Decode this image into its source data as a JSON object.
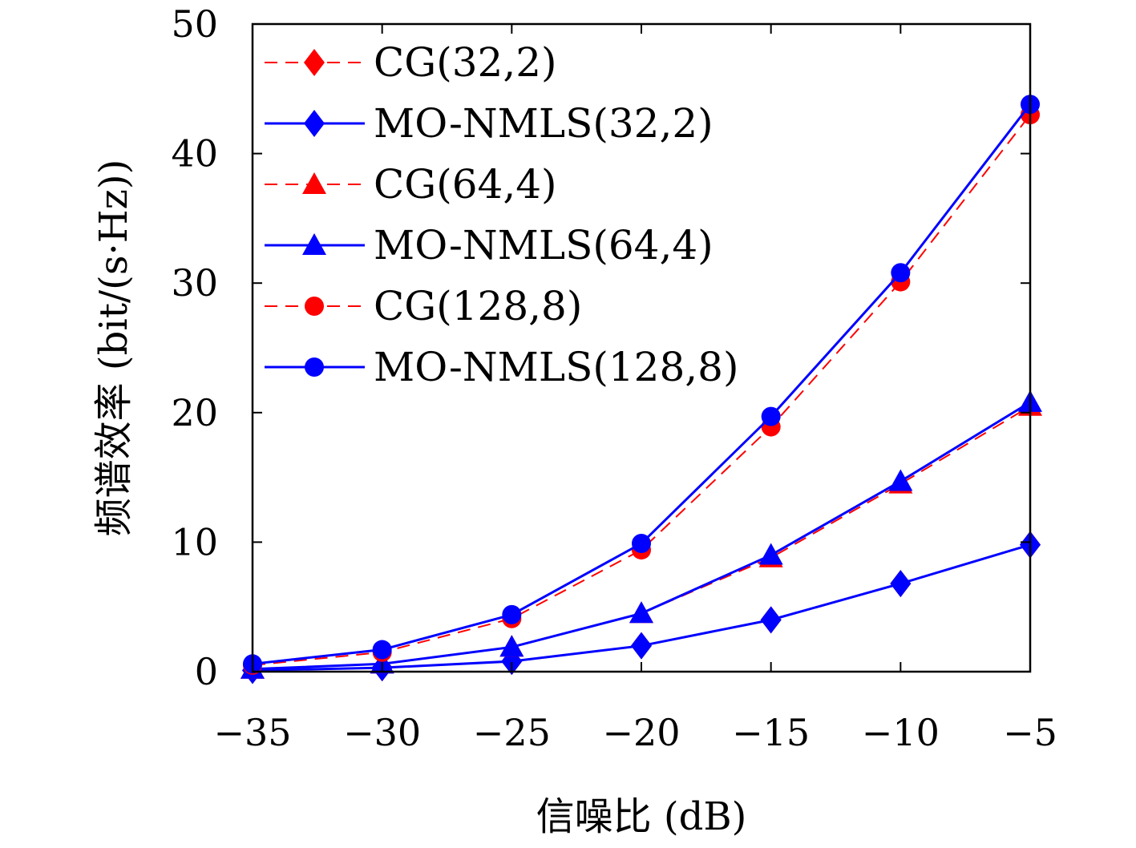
{
  "chart_data": {
    "type": "line",
    "title": "",
    "xlabel": "信噪比 (dB)",
    "ylabel": "频谱效率 (bit/(s·Hz))",
    "x": [
      -35,
      -30,
      -25,
      -20,
      -15,
      -10,
      -5
    ],
    "xlim": [
      -35,
      -5
    ],
    "ylim": [
      0,
      50
    ],
    "xticks": [
      -35,
      -30,
      -25,
      -20,
      -15,
      -10,
      -5
    ],
    "yticks": [
      0,
      10,
      20,
      30,
      40,
      50
    ],
    "xtick_labels": [
      "−35",
      "−30",
      "−25",
      "−20",
      "−15",
      "−10",
      "−5"
    ],
    "ytick_labels": [
      "0",
      "10",
      "20",
      "30",
      "40",
      "50"
    ],
    "grid": false,
    "legend_position": "top-left",
    "series": [
      {
        "name": "CG(32,2)",
        "values": [
          0.1,
          0.3,
          0.8,
          2.0,
          4.0,
          6.8,
          9.8
        ],
        "color": "#ff0000",
        "marker": "diamond",
        "dashed": true
      },
      {
        "name": "MO-NMLS(32,2)",
        "values": [
          0.1,
          0.3,
          0.8,
          2.0,
          4.0,
          6.8,
          9.8
        ],
        "color": "#0000ff",
        "marker": "diamond",
        "dashed": false
      },
      {
        "name": "CG(64,4)",
        "values": [
          0.2,
          0.6,
          1.9,
          4.5,
          8.8,
          14.5,
          20.5
        ],
        "color": "#ff0000",
        "marker": "triangle",
        "dashed": true
      },
      {
        "name": "MO-NMLS(64,4)",
        "values": [
          0.2,
          0.6,
          1.9,
          4.5,
          9.0,
          14.7,
          20.8
        ],
        "color": "#0000ff",
        "marker": "triangle",
        "dashed": false
      },
      {
        "name": "CG(128,8)",
        "values": [
          0.5,
          1.5,
          4.1,
          9.4,
          18.9,
          30.1,
          43.0
        ],
        "color": "#ff0000",
        "marker": "circle",
        "dashed": true
      },
      {
        "name": "MO-NMLS(128,8)",
        "values": [
          0.6,
          1.7,
          4.4,
          9.9,
          19.7,
          30.8,
          43.8
        ],
        "color": "#0000ff",
        "marker": "circle",
        "dashed": false
      }
    ]
  }
}
